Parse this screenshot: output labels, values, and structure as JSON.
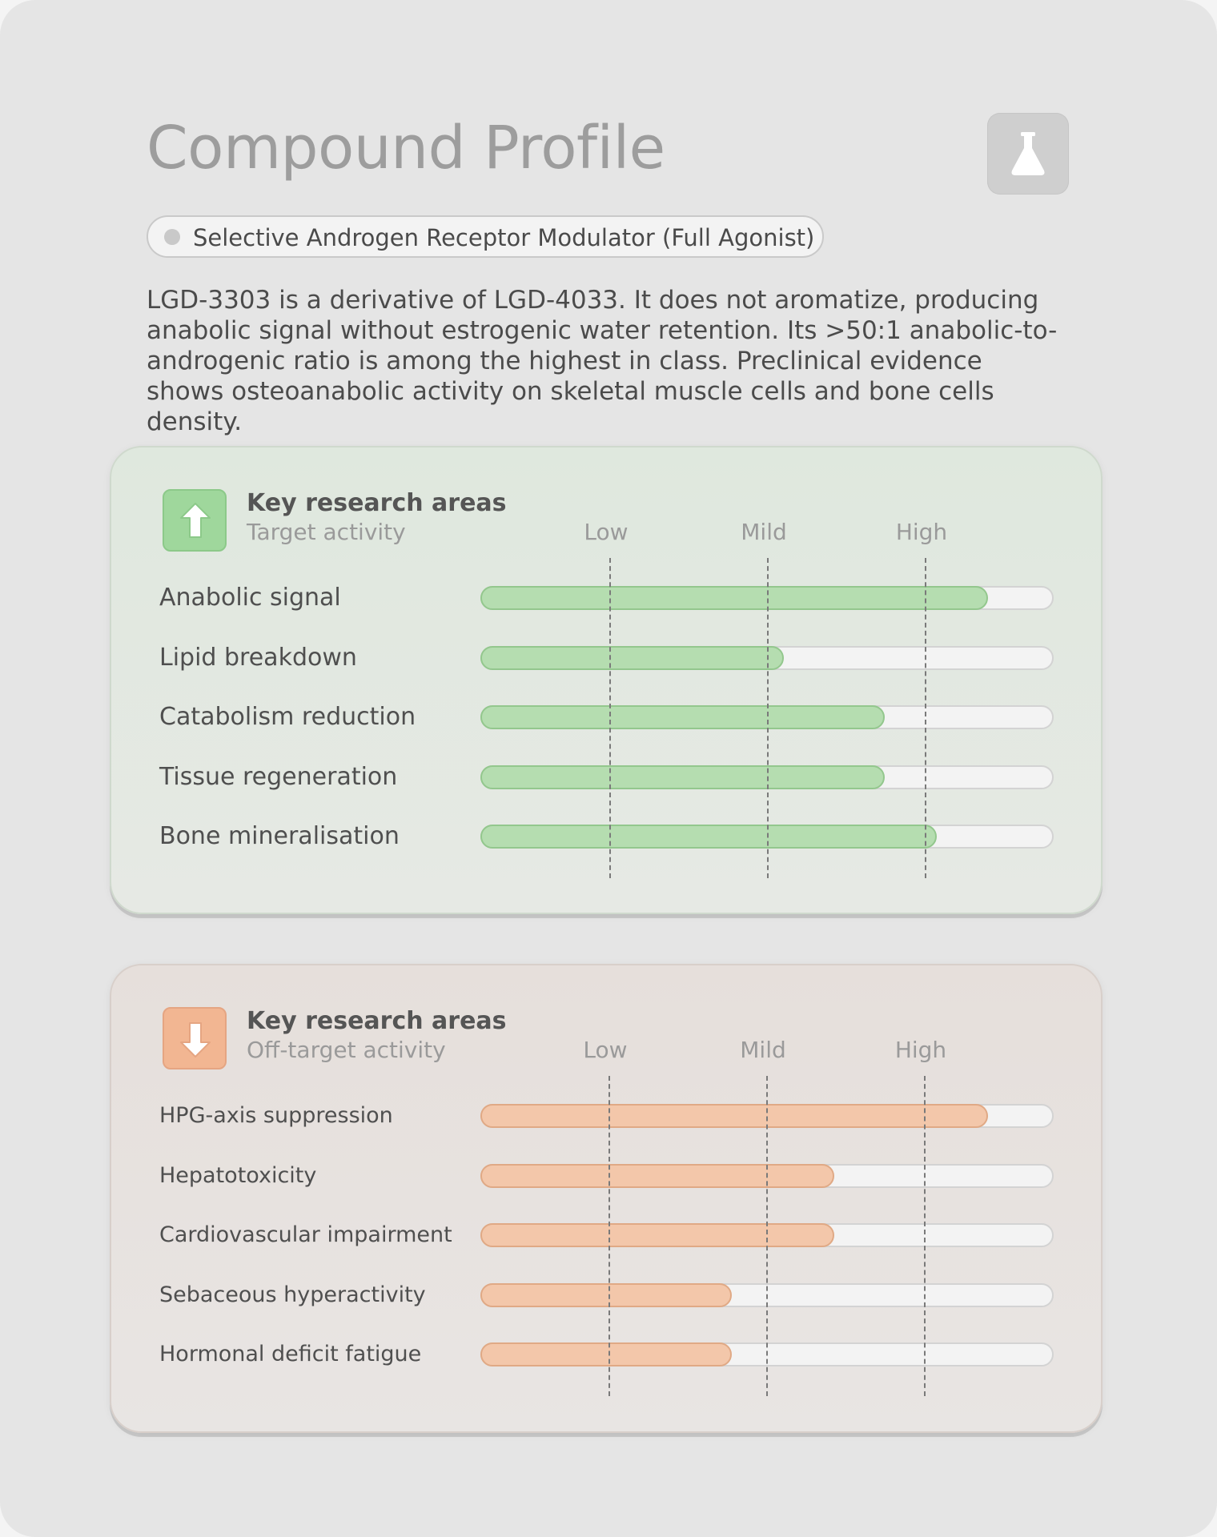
{
  "header": {
    "title": "Compound Profile",
    "app_icon": "flask-icon",
    "category": "Selective Androgen Receptor Modulator (Full Agonist)",
    "description": "LGD-3303 is a derivative of LGD-4033. It does not aromatize, producing anabolic signal without estrogenic water retention. Its >50:1 anabolic-to-androgenic ratio is among the highest in class. Preclinical evidence shows osteoanabolic activity on skeletal muscle cells and bone cells density."
  },
  "scale": {
    "low": "Low",
    "mild": "Mild",
    "high": "High"
  },
  "target": {
    "title": "Key research areas",
    "subtitle": "Target activity",
    "icon": "arrow-up-icon",
    "color": "#b5ddb0",
    "rows": [
      {
        "label": "Anabolic signal",
        "value": 0.885
      },
      {
        "label": "Lipid breakdown",
        "value": 0.53
      },
      {
        "label": "Catabolism reduction",
        "value": 0.706
      },
      {
        "label": "Tissue regeneration",
        "value": 0.706
      },
      {
        "label": "Bone mineralisation",
        "value": 0.796
      }
    ]
  },
  "offtarget": {
    "title": "Key research areas",
    "subtitle": "Off-target activity",
    "icon": "arrow-down-icon",
    "color": "#f3c7aa",
    "rows": [
      {
        "label": "HPG-axis suppression",
        "value": 0.885
      },
      {
        "label": "Hepatotoxicity",
        "value": 0.618
      },
      {
        "label": "Cardiovascular impairment",
        "value": 0.618
      },
      {
        "label": "Sebaceous hyperactivity",
        "value": 0.438
      },
      {
        "label": "Hormonal deficit fatigue",
        "value": 0.438
      }
    ]
  }
}
